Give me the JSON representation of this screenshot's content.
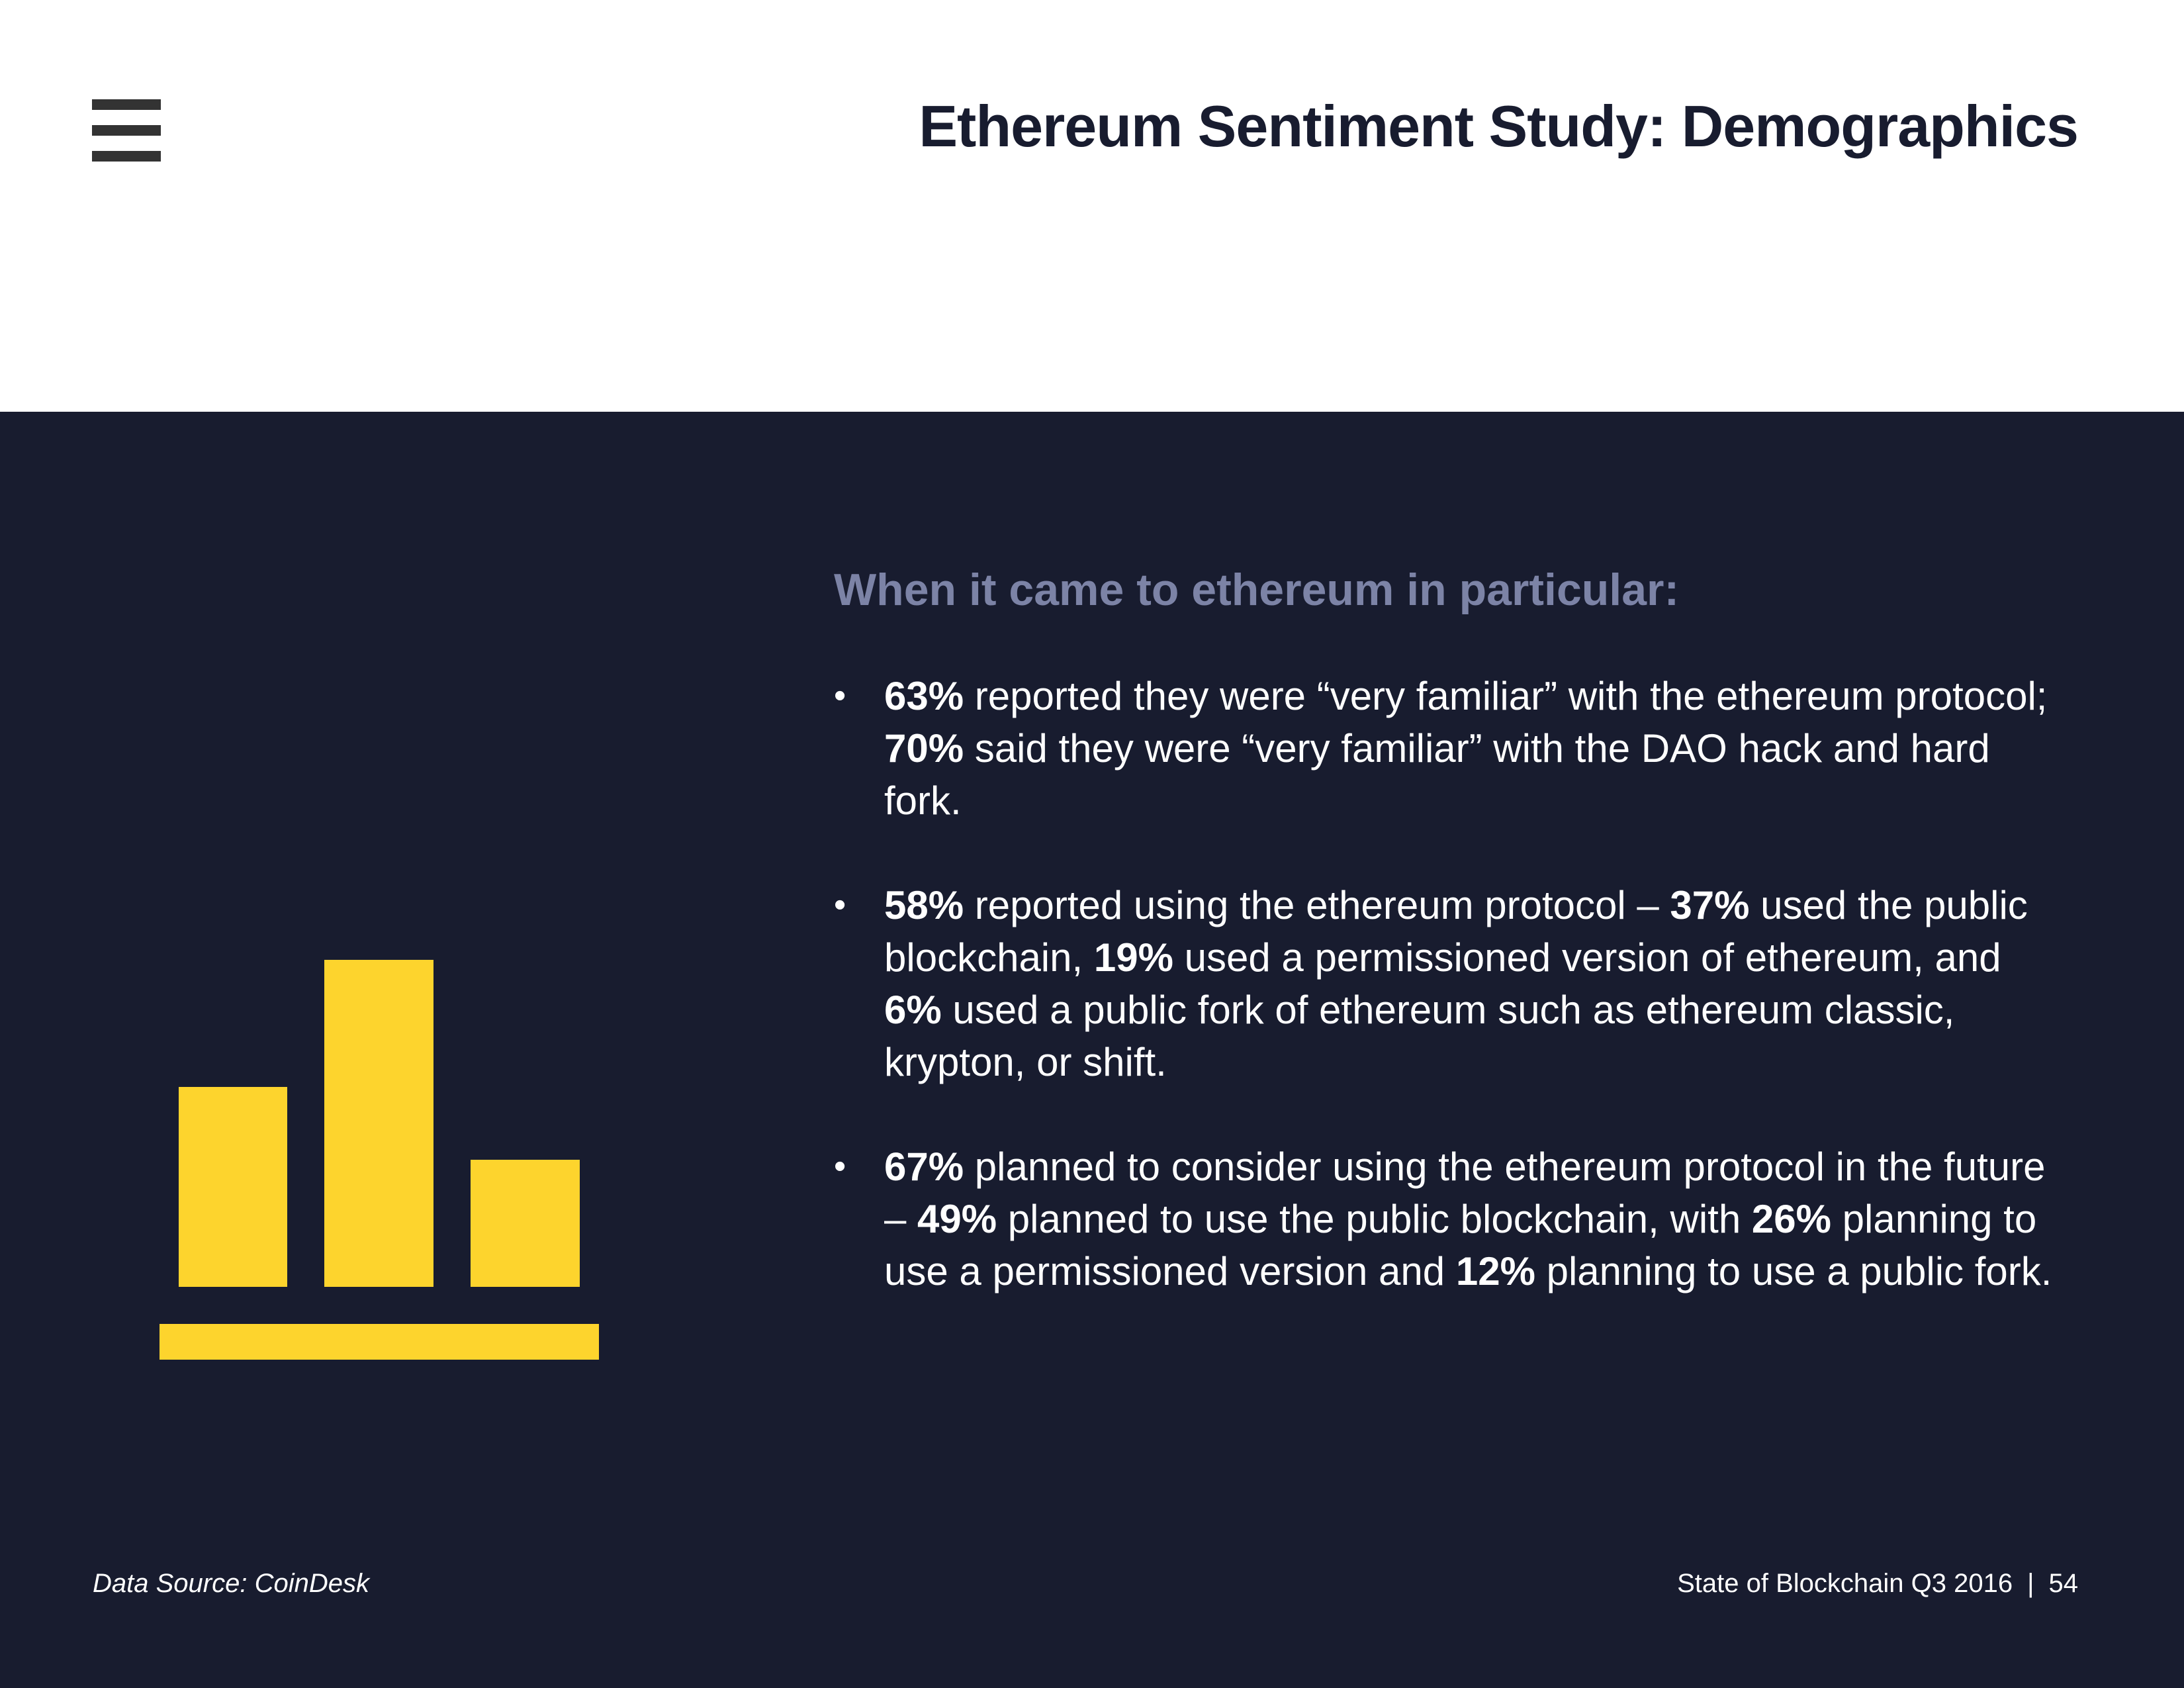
{
  "header": {
    "title": "Ethereum Sentiment Study: Demographics",
    "menu_icon": "hamburger-menu-icon"
  },
  "panel": {
    "illustration_icon": "bar-chart-icon",
    "accent_color": "#FDD42D",
    "background_color": "#181C2F",
    "intro": "When it came to ethereum in particular:",
    "bullets": [
      {
        "parts": [
          {
            "text": "63%",
            "bold": true
          },
          {
            "text": " reported they were “very familiar” with the ethereum protocol; ",
            "bold": false
          },
          {
            "text": "70%",
            "bold": true
          },
          {
            "text": " said they were “very familiar” with the DAO hack and hard fork.",
            "bold": false
          }
        ]
      },
      {
        "parts": [
          {
            "text": "58%",
            "bold": true
          },
          {
            "text": " reported using the ethereum protocol – ",
            "bold": false
          },
          {
            "text": "37%",
            "bold": true
          },
          {
            "text": " used the public blockchain, ",
            "bold": false
          },
          {
            "text": "19%",
            "bold": true
          },
          {
            "text": " used a permissioned version of ethereum, and ",
            "bold": false
          },
          {
            "text": "6%",
            "bold": true
          },
          {
            "text": " used a public fork of ethereum such as ethereum classic, krypton, or shift.",
            "bold": false
          }
        ]
      },
      {
        "parts": [
          {
            "text": "67%",
            "bold": true
          },
          {
            "text": " planned to consider using the ethereum protocol in the future – ",
            "bold": false
          },
          {
            "text": "49%",
            "bold": true
          },
          {
            "text": " planned to use the public blockchain, with ",
            "bold": false
          },
          {
            "text": "26%",
            "bold": true
          },
          {
            "text": " planning to use a permissioned version and ",
            "bold": false
          },
          {
            "text": "12%",
            "bold": true
          },
          {
            "text": " planning to use a public fork.",
            "bold": false
          }
        ]
      }
    ]
  },
  "footer": {
    "source": "Data Source: CoinDesk",
    "publication": "State of Blockchain Q3 2016",
    "separator": "|",
    "page_number": "54"
  }
}
